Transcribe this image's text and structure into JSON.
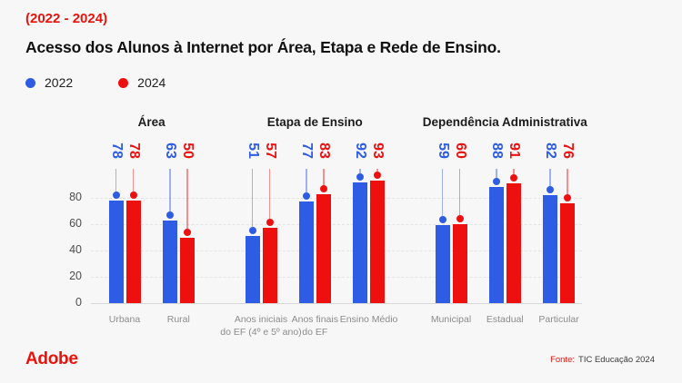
{
  "header": {
    "subtitle": "(2022 - 2024)",
    "title": "Acesso dos Alunos à Internet por Área, Etapa e Rede de Ensino."
  },
  "chart_data": {
    "type": "bar",
    "title": "Acesso dos Alunos à Internet por Área, Etapa e Rede de Ensino.",
    "subtitle": "(2022 - 2024)",
    "series_names": [
      "2022",
      "2024"
    ],
    "colors": [
      "#2e5ce4",
      "#ee0f0f"
    ],
    "ylim": [
      0,
      100
    ],
    "yticks": [
      0,
      20,
      40,
      60,
      80
    ],
    "grid": "dotted-horizontal",
    "legend_position": "top-left",
    "value_label_style": "rotated-90-above-bars-with-lollipop-stem",
    "groups": [
      {
        "title": "Área",
        "categories": [
          "Urbana",
          "Rural"
        ],
        "series": [
          {
            "name": "2022",
            "values": [
              78,
              63
            ]
          },
          {
            "name": "2024",
            "values": [
              78,
              50
            ]
          }
        ]
      },
      {
        "title": "Etapa de Ensino",
        "categories": [
          "Anos iniciais\ndo EF (4º e 5º ano)",
          "Anos finais\ndo EF",
          "Ensino Médio"
        ],
        "series": [
          {
            "name": "2022",
            "values": [
              51,
              77,
              92
            ]
          },
          {
            "name": "2024",
            "values": [
              57,
              83,
              93
            ]
          }
        ]
      },
      {
        "title": "Dependência Administrativa",
        "categories": [
          "Municipal",
          "Estadual",
          "Particular"
        ],
        "series": [
          {
            "name": "2022",
            "values": [
              59,
              88,
              82
            ]
          },
          {
            "name": "2024",
            "values": [
              60,
              91,
              76
            ]
          }
        ]
      }
    ]
  },
  "footer": {
    "logo": "Adobe",
    "source_label": "Fonte:",
    "source_text": "TIC Educação 2024"
  }
}
